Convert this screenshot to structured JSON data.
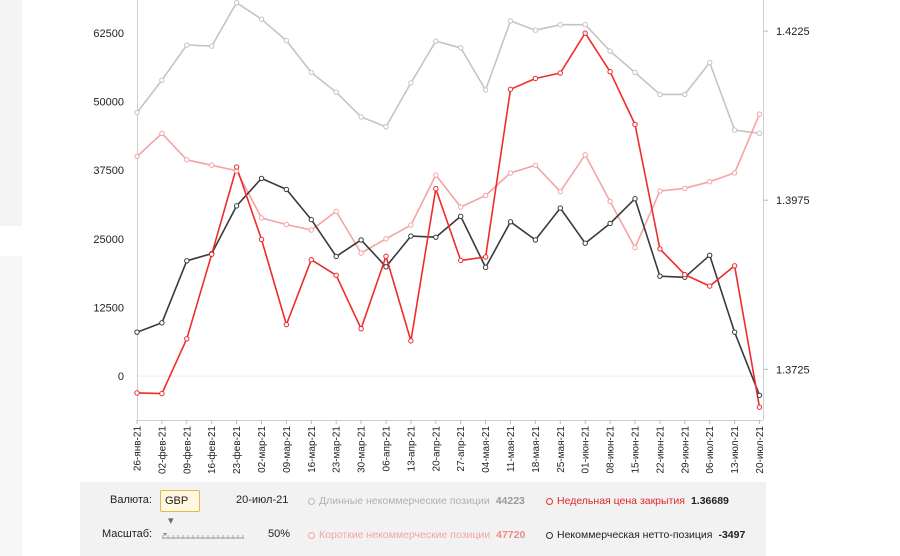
{
  "chart_data": {
    "type": "line",
    "dates": [
      "26-янв-21",
      "02-фев-21",
      "09-фев-21",
      "16-фев-21",
      "23-фев-21",
      "02-мар-21",
      "09-мар-21",
      "16-мар-21",
      "23-мар-21",
      "30-мар-21",
      "06-апр-21",
      "13-апр-21",
      "20-апр-21",
      "27-апр-21",
      "04-мая-21",
      "11-мая-21",
      "18-мая-21",
      "25-мая-21",
      "01-июн-21",
      "08-июн-21",
      "15-июн-21",
      "22-июн-21",
      "29-июн-21",
      "06-июл-21",
      "13-июл-21",
      "20-июл-21"
    ],
    "x_tick_labels": [
      "26-янв-21",
      "02-фев-21",
      "09-фев-21",
      "16-фев-21",
      "23-фев-21",
      "02-мар-21",
      "09-мар-21",
      "16-мар-21",
      "23-мар-21",
      "30-мар-21",
      "06-апр-21",
      "13-апр-21",
      "20-апр-21",
      "27-апр-21",
      "04-мая-21",
      "11-мая-21",
      "18-мая-21",
      "25-мая-21",
      "01-июн-21",
      "08-июн-21",
      "15-июн-21",
      "22-июн-21",
      "29-июн-21",
      "06-июл-21",
      "13-июл-21",
      "20-июл-21"
    ],
    "left_axis": {
      "ticks": [
        "0",
        "12500",
        "25000",
        "37500",
        "50000",
        "62500"
      ],
      "tick_values": [
        0,
        12500,
        25000,
        37500,
        50000,
        62500
      ],
      "range": [
        -8000,
        68500
      ]
    },
    "right_axis": {
      "ticks": [
        "1.3725",
        "1.3975",
        "1.4225"
      ],
      "tick_values": [
        1.3725,
        1.3975,
        1.4225
      ],
      "range": [
        1.365,
        1.4271
      ]
    },
    "series": [
      {
        "name": "Длинные некоммерческие позиции",
        "axis": "left",
        "color": "#c4c4c4",
        "values": [
          48000,
          53900,
          60300,
          60100,
          68000,
          65000,
          61100,
          55300,
          51700,
          47200,
          45400,
          53400,
          61000,
          59800,
          52100,
          64700,
          63000,
          64000,
          64000,
          59200,
          55300,
          51300,
          51300,
          57100,
          44800,
          44223
        ]
      },
      {
        "name": "Короткие некоммерческие позиции",
        "axis": "left",
        "color": "#f5a3a3",
        "values": [
          40000,
          44200,
          39400,
          38400,
          37400,
          28800,
          27600,
          26600,
          30000,
          22400,
          25000,
          27500,
          36600,
          30800,
          32900,
          37000,
          38400,
          33600,
          40300,
          31800,
          23400,
          33700,
          34200,
          35400,
          37000,
          47720
        ]
      },
      {
        "name": "Недельная цена закрытия",
        "axis": "right",
        "color": "#ef2b2b",
        "values": [
          1.369,
          1.3689,
          1.377,
          1.3895,
          1.4024,
          1.3917,
          1.3791,
          1.3887,
          1.3864,
          1.3785,
          1.3892,
          1.3767,
          1.3992,
          1.3886,
          1.3891,
          1.4139,
          1.4155,
          1.4163,
          1.4222,
          1.4165,
          1.4087,
          1.3903,
          1.3865,
          1.3848,
          1.3878,
          1.36689
        ]
      },
      {
        "name": "Некоммерческая нетто-позиция",
        "axis": "left",
        "color": "#3a3a3a",
        "values": [
          8000,
          9700,
          21000,
          22300,
          31000,
          36000,
          34000,
          28500,
          21800,
          24800,
          19900,
          25500,
          25300,
          29100,
          19800,
          28100,
          24800,
          30600,
          24200,
          27800,
          32300,
          18200,
          18000,
          22000,
          8000,
          -3497
        ]
      }
    ]
  },
  "controls": {
    "currency_label": "Валюта:",
    "currency_value": "GBP",
    "currency_chevron": "▾",
    "date": "20-июл-21",
    "scale_label": "Масштаб:",
    "scale_value": "50%",
    "legend": [
      {
        "label": "Длинные некоммерческие позиции",
        "value": "44223",
        "color": "#b9b9b9",
        "value_color": "#9a9a9a"
      },
      {
        "label": "Недельная цена закрытия",
        "value": "1.36689",
        "color": "#ef2b2b",
        "value_color": "#222222"
      },
      {
        "label": "Короткие некоммерческие позиции",
        "value": "47720",
        "color": "#f5a3a3",
        "value_color": "#f08a8a"
      },
      {
        "label": "Некоммерческая нетто-позиция",
        "value": "-3497",
        "color": "#333333",
        "value_color": "#222222"
      }
    ]
  }
}
